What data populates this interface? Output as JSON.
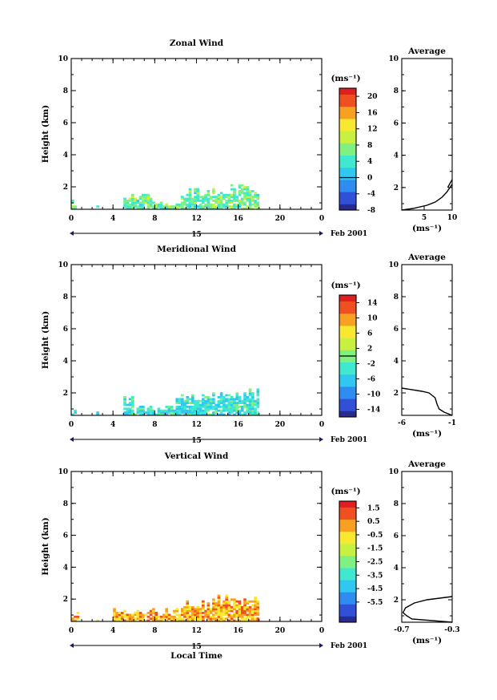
{
  "chart_data": [
    {
      "type": "heatmap",
      "title": "Zonal Wind",
      "xlabel": "",
      "ylabel": "Height (km)",
      "xlim": [
        0,
        24
      ],
      "ylim": [
        0.6,
        10
      ],
      "x_ticks": [
        "0",
        "4",
        "8",
        "12",
        "16",
        "20",
        "0"
      ],
      "y_ticks": [
        "2",
        "4",
        "6",
        "8",
        "10"
      ],
      "date_label": "15",
      "month_label": "Feb 2001",
      "colorbar": {
        "unit": "(ms⁻¹)",
        "range": [
          -8,
          22
        ],
        "ticks": [
          "20",
          "16",
          "12",
          "8",
          "4",
          "0",
          "-4",
          "-8"
        ],
        "zero_line": 0
      },
      "data_extent": {
        "x_range_hours": [
          0,
          18
        ],
        "max_height_km_by_segment": [
          {
            "x": [
              0,
              0.4
            ],
            "top_km": 1.2
          },
          {
            "x": [
              2.4,
              2.6
            ],
            "top_km": 1.0
          },
          {
            "x": [
              5.0,
              8.0
            ],
            "top_km": 1.6
          },
          {
            "x": [
              8.0,
              10.5
            ],
            "top_km": 1.2
          },
          {
            "x": [
              10.5,
              14.0
            ],
            "top_km": 1.9
          },
          {
            "x": [
              14.0,
              18.0
            ],
            "top_km": 2.2
          }
        ],
        "typical_value_ms": 6
      },
      "average_profile": {
        "title": "Average",
        "xlabel": "(ms⁻¹)",
        "xlim": [
          1,
          10
        ],
        "x_ticks": [
          "5",
          "10"
        ],
        "ylim": [
          0.6,
          10
        ],
        "y_ticks": [
          "2",
          "4",
          "6",
          "8",
          "10"
        ],
        "x": [
          1.0,
          3.0,
          5.5,
          7.0,
          8.2,
          9.0,
          9.6,
          10.0,
          10.0
        ],
        "y": [
          0.6,
          0.7,
          0.9,
          1.1,
          1.4,
          1.7,
          2.0,
          2.2,
          2.2
        ],
        "upper_branch": {
          "x": [
            9.2,
            10.0
          ],
          "y": [
            2.0,
            2.5
          ]
        }
      }
    },
    {
      "type": "heatmap",
      "title": "Meridional Wind",
      "xlabel": "",
      "ylabel": "Height (km)",
      "xlim": [
        0,
        24
      ],
      "ylim": [
        0.6,
        10
      ],
      "x_ticks": [
        "0",
        "4",
        "8",
        "12",
        "16",
        "20",
        "0"
      ],
      "y_ticks": [
        "2",
        "4",
        "6",
        "8",
        "10"
      ],
      "date_label": "15",
      "month_label": "Feb 2001",
      "colorbar": {
        "unit": "(ms⁻¹)",
        "range": [
          -16,
          16
        ],
        "ticks": [
          "14",
          "10",
          "6",
          "2",
          "-2",
          "-6",
          "-10",
          "-14"
        ],
        "zero_line": 0
      },
      "data_extent": {
        "x_range_hours": [
          0,
          18
        ],
        "max_height_km_by_segment": [
          {
            "x": [
              0,
              0.4
            ],
            "top_km": 1.2
          },
          {
            "x": [
              2.4,
              2.6
            ],
            "top_km": 1.0
          },
          {
            "x": [
              5.0,
              6.0
            ],
            "top_km": 1.9
          },
          {
            "x": [
              6.0,
              10.0
            ],
            "top_km": 1.2
          },
          {
            "x": [
              10.0,
              14.0
            ],
            "top_km": 2.0
          },
          {
            "x": [
              14.0,
              18.0
            ],
            "top_km": 2.3
          }
        ],
        "typical_value_ms": -4
      },
      "average_profile": {
        "title": "Average",
        "xlabel": "(ms⁻¹)",
        "xlim": [
          -6,
          -1
        ],
        "x_ticks": [
          "-6",
          "-1"
        ],
        "ylim": [
          0.6,
          10
        ],
        "y_ticks": [
          "2",
          "4",
          "6",
          "8",
          "10"
        ],
        "x": [
          -1.0,
          -1.8,
          -2.3,
          -2.5,
          -2.7,
          -3.3,
          -4.0,
          -6.0
        ],
        "y": [
          0.6,
          0.8,
          1.0,
          1.3,
          1.7,
          2.0,
          2.1,
          2.3
        ]
      }
    },
    {
      "type": "heatmap",
      "title": "Vertical Wind",
      "xlabel": "Local Time",
      "ylabel": "Height (km)",
      "xlim": [
        0,
        24
      ],
      "ylim": [
        0.6,
        10
      ],
      "x_ticks": [
        "0",
        "4",
        "8",
        "12",
        "16",
        "20",
        "0"
      ],
      "y_ticks": [
        "2",
        "4",
        "6",
        "8",
        "10"
      ],
      "date_label": "15",
      "month_label": "Feb 2001",
      "colorbar": {
        "unit": "(ms⁻¹)",
        "range": [
          -7.0,
          2.0
        ],
        "ticks": [
          "1.5",
          "0.5",
          "-0.5",
          "-1.5",
          "-2.5",
          "-3.5",
          "-4.5",
          "-5.5"
        ]
      },
      "data_extent": {
        "x_range_hours": [
          0,
          18
        ],
        "max_height_km_by_segment": [
          {
            "x": [
              0,
              0.6
            ],
            "top_km": 1.2
          },
          {
            "x": [
              2.4,
              2.6
            ],
            "top_km": 1.0
          },
          {
            "x": [
              4.0,
              10.5
            ],
            "top_km": 1.4
          },
          {
            "x": [
              10.5,
              14.0
            ],
            "top_km": 2.0
          },
          {
            "x": [
              14.0,
              18.0
            ],
            "top_km": 2.3
          }
        ],
        "typical_value_ms": 0
      },
      "average_profile": {
        "title": "Average",
        "xlabel": "(ms⁻¹)",
        "xlim": [
          -0.7,
          -0.3
        ],
        "x_ticks": [
          "-0.7",
          "-0.3"
        ],
        "ylim": [
          0.6,
          10
        ],
        "y_ticks": [
          "2",
          "4",
          "6",
          "8",
          "10"
        ],
        "x": [
          -0.3,
          -0.62,
          -0.66,
          -0.69,
          -0.67,
          -0.6,
          -0.5,
          -0.4,
          -0.3
        ],
        "y": [
          0.6,
          0.8,
          1.0,
          1.2,
          1.5,
          1.8,
          2.0,
          2.1,
          2.2
        ]
      }
    }
  ],
  "colormap": [
    "#2b2b8c",
    "#3050d8",
    "#2f8cf0",
    "#30c8f0",
    "#40e8d0",
    "#80f080",
    "#c8f040",
    "#f8e830",
    "#f8a020",
    "#f05020",
    "#e02020"
  ]
}
